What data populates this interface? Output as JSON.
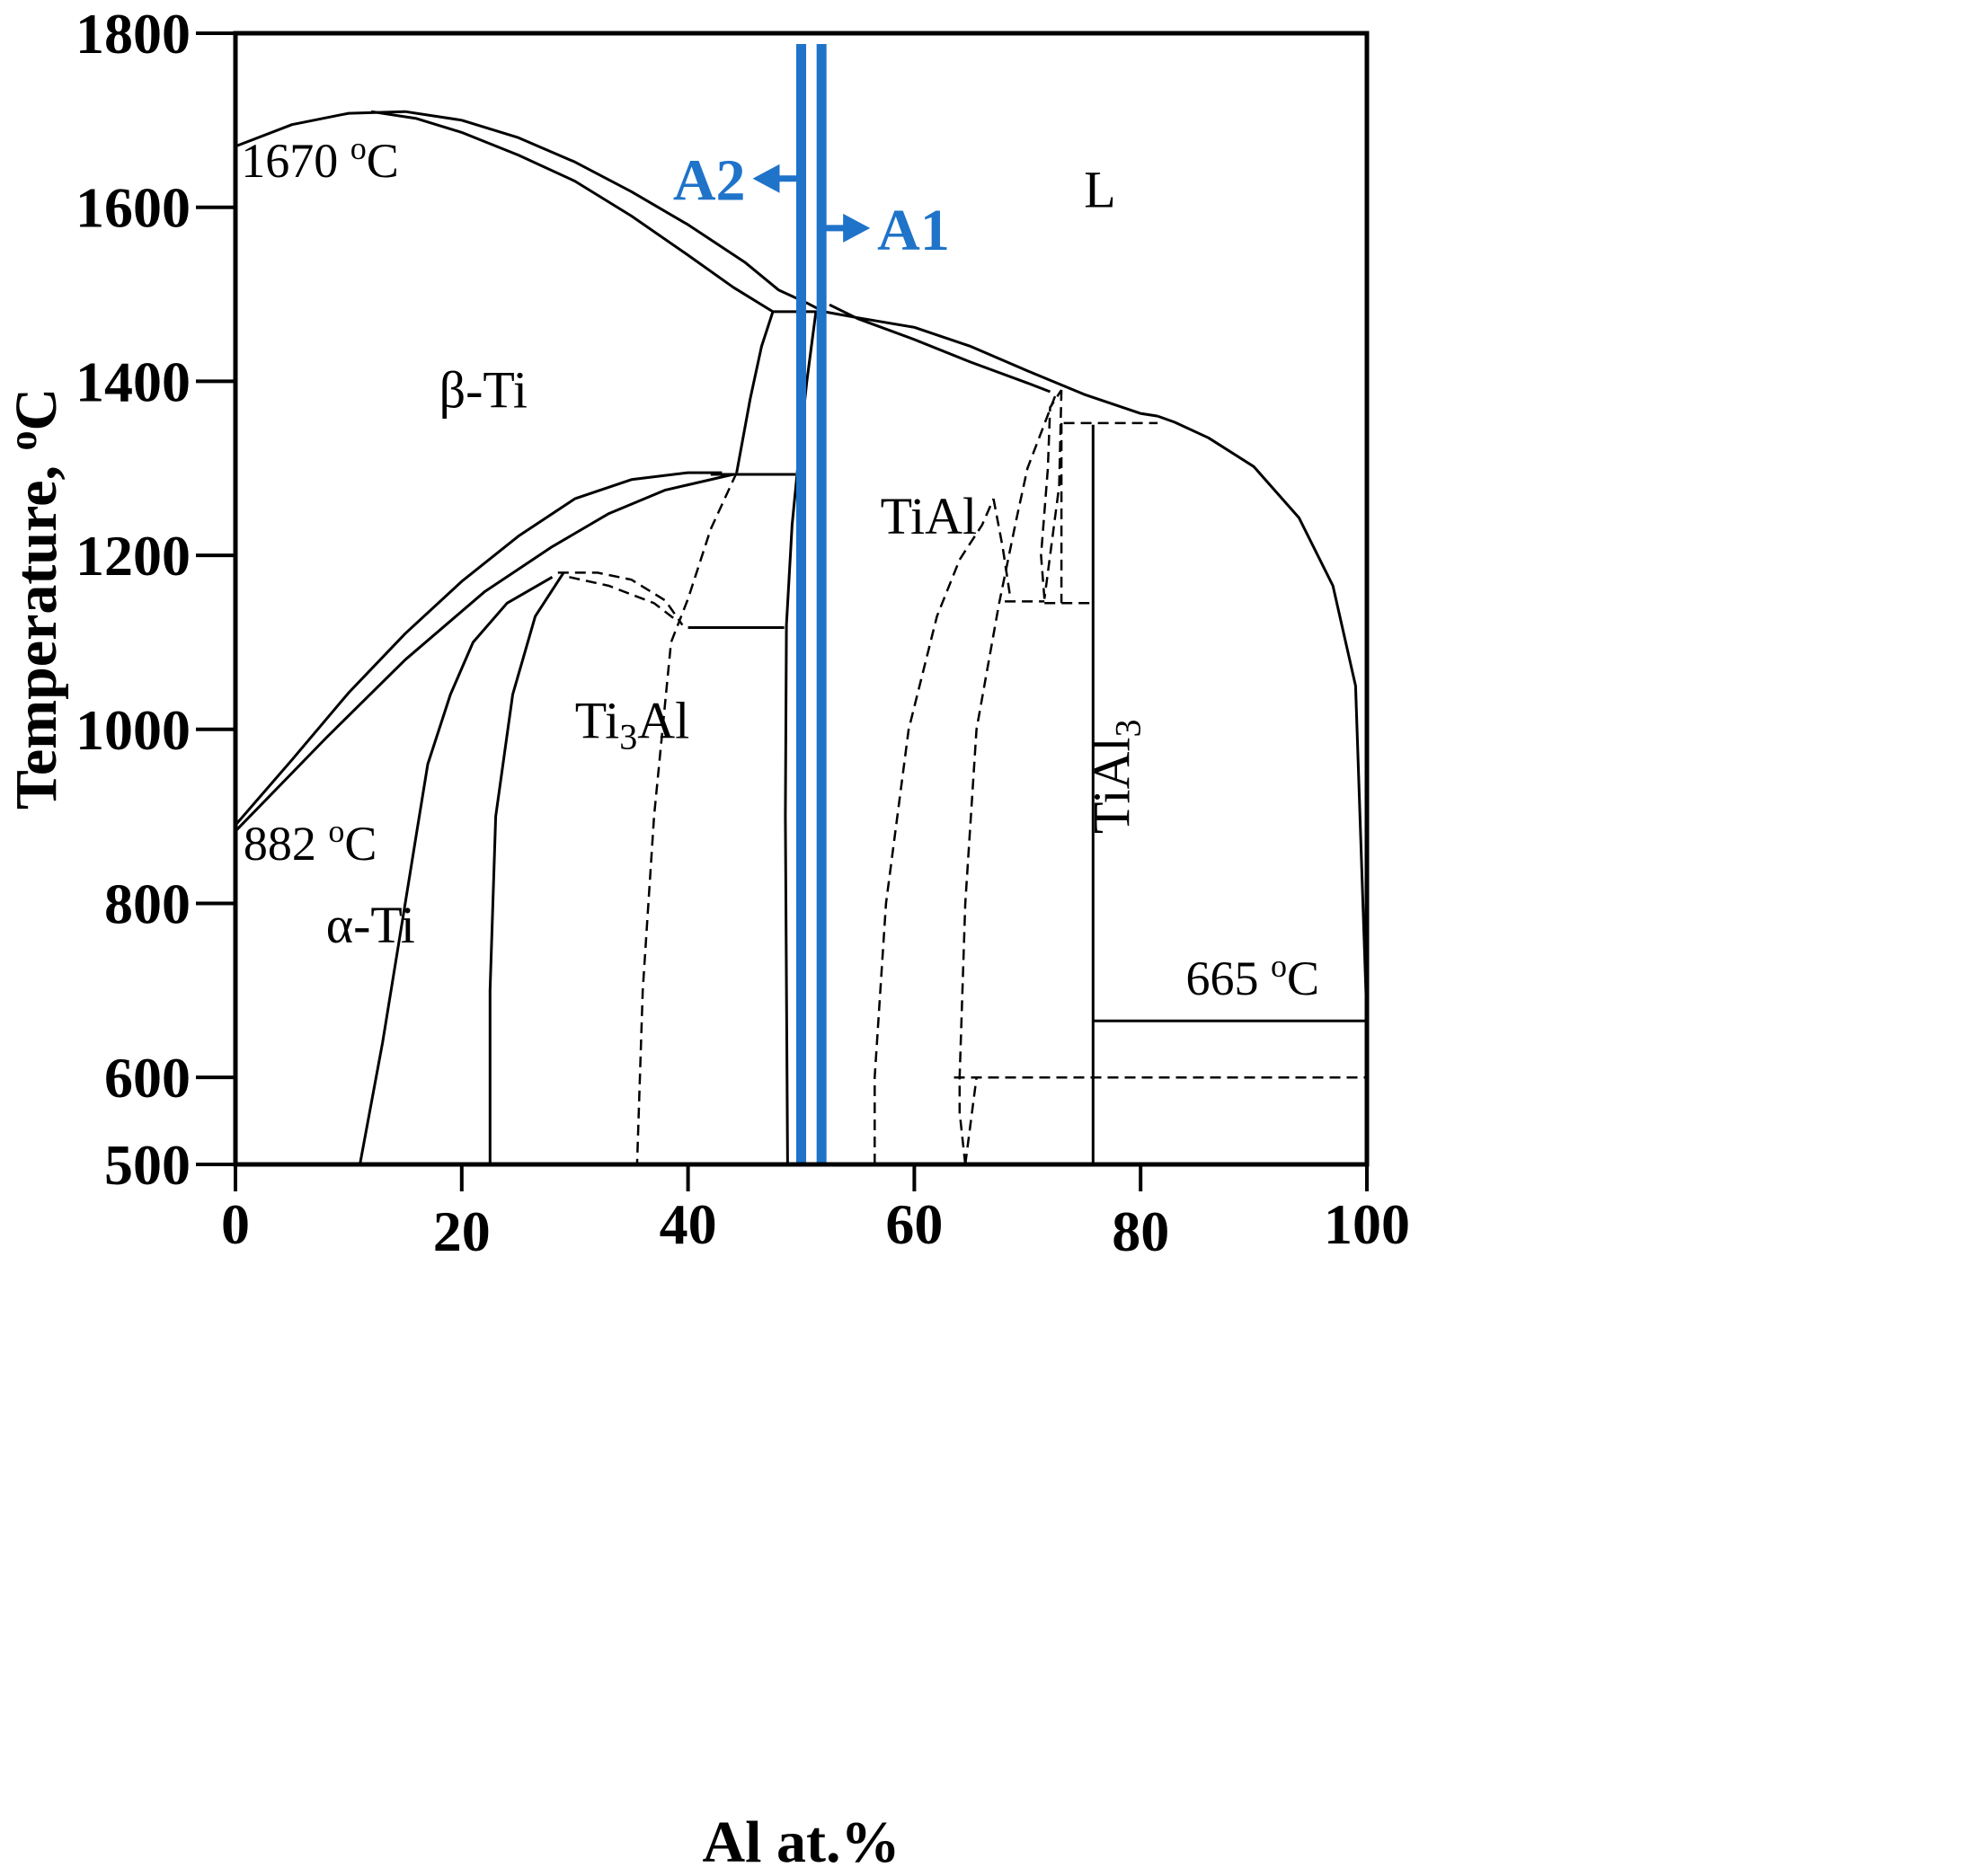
{
  "chart_data": {
    "type": "line",
    "subtype": "phase-diagram",
    "system": "Ti-Al",
    "xlabel": "Al at.%",
    "ylabel": "Temperature, ",
    "ylabel_unit": "C",
    "xlim": [
      0,
      100
    ],
    "ylim": [
      500,
      1800
    ],
    "xticks": [
      "0",
      "20",
      "40",
      "60",
      "80",
      "100"
    ],
    "yticks": [
      "500",
      "600",
      "800",
      "1000",
      "1200",
      "1400",
      "1600",
      "1800"
    ],
    "grid": false,
    "regions": [
      {
        "label": "L",
        "x": 75,
        "y": 1600
      },
      {
        "label": "β-Ti",
        "x": 18,
        "y": 1370
      },
      {
        "label": "TiAl",
        "x": 57,
        "y": 1225
      },
      {
        "label": "α-Ti",
        "x": 8,
        "y": 755
      },
      {
        "base": "Ti",
        "sub": "3",
        "rest": "Al",
        "x": 30,
        "y": 990
      },
      {
        "base": "TiAl",
        "sub": "3",
        "x": 79,
        "y": 880,
        "rotated": true
      }
    ],
    "temperature_labels": [
      {
        "text": "1670 ",
        "sup": "o",
        "unit": "C",
        "x": 0.5,
        "y": 1635
      },
      {
        "text": "882 ",
        "sup": "o",
        "unit": "C",
        "x": 0.7,
        "y": 850
      },
      {
        "text": "665 ",
        "sup": "o",
        "unit": "C",
        "x": 84,
        "y": 695
      }
    ],
    "compositions": [
      {
        "name": "A1",
        "x": 51.8,
        "arrow": "right",
        "arrow_y": 1576,
        "color": "#1f73c9"
      },
      {
        "name": "A2",
        "x": 50.0,
        "arrow": "left",
        "arrow_y": 1633,
        "color": "#1f73c9"
      }
    ],
    "solid_lines": [
      [
        [
          0,
          1670
        ],
        [
          5,
          1695
        ],
        [
          10,
          1708
        ],
        [
          15,
          1710
        ],
        [
          20,
          1700
        ],
        [
          25,
          1680
        ],
        [
          30,
          1652
        ],
        [
          35,
          1618
        ],
        [
          40,
          1580
        ],
        [
          45,
          1537
        ],
        [
          48,
          1505
        ],
        [
          50.5,
          1490
        ],
        [
          52,
          1480
        ]
      ],
      [
        [
          12,
          1710
        ],
        [
          16,
          1702
        ],
        [
          20,
          1686
        ],
        [
          25,
          1660
        ],
        [
          30,
          1630
        ],
        [
          35,
          1590
        ],
        [
          40,
          1545
        ],
        [
          44,
          1508
        ],
        [
          47.5,
          1480
        ]
      ],
      [
        [
          47.5,
          1480
        ],
        [
          52,
          1480
        ]
      ],
      [
        [
          52,
          1480
        ],
        [
          55,
          1473
        ],
        [
          60,
          1462
        ],
        [
          65,
          1440
        ],
        [
          70,
          1412
        ],
        [
          75,
          1385
        ],
        [
          80,
          1363
        ],
        [
          81.5,
          1360
        ]
      ],
      [
        [
          52.5,
          1488
        ],
        [
          55,
          1472
        ],
        [
          60,
          1448
        ],
        [
          65,
          1422
        ],
        [
          70,
          1398
        ],
        [
          72,
          1388
        ]
      ],
      [
        [
          81.5,
          1360
        ],
        [
          83,
          1353
        ],
        [
          86,
          1335
        ],
        [
          90,
          1302
        ],
        [
          94,
          1243
        ],
        [
          97,
          1165
        ],
        [
          99,
          1050
        ],
        [
          100,
          665
        ]
      ],
      [
        [
          47.5,
          1480
        ],
        [
          46.5,
          1440
        ],
        [
          45.5,
          1380
        ],
        [
          44.3,
          1295
        ]
      ],
      [
        [
          51.3,
          1480
        ],
        [
          50.5,
          1400
        ],
        [
          49.8,
          1315
        ],
        [
          49.2,
          1235
        ],
        [
          48.7,
          1120
        ],
        [
          48.6,
          900
        ],
        [
          48.8,
          500
        ]
      ],
      [
        [
          42,
          1293
        ],
        [
          49.5,
          1293
        ]
      ],
      [
        [
          0,
          890
        ],
        [
          5,
          965
        ],
        [
          10,
          1042
        ],
        [
          15,
          1110
        ],
        [
          20,
          1170
        ],
        [
          25,
          1222
        ],
        [
          30,
          1265
        ],
        [
          35,
          1287
        ],
        [
          40,
          1295
        ],
        [
          43,
          1295
        ]
      ],
      [
        [
          0,
          883
        ],
        [
          8,
          990
        ],
        [
          15,
          1080
        ],
        [
          22,
          1158
        ],
        [
          28,
          1210
        ],
        [
          33,
          1248
        ],
        [
          38,
          1275
        ],
        [
          44,
          1293
        ]
      ],
      [
        [
          11,
          500
        ],
        [
          13,
          640
        ],
        [
          15,
          800
        ],
        [
          16,
          880
        ],
        [
          17,
          960
        ],
        [
          19,
          1040
        ],
        [
          21,
          1100
        ],
        [
          24,
          1145
        ],
        [
          28,
          1175
        ]
      ],
      [
        [
          22.5,
          500
        ],
        [
          22.5,
          700
        ],
        [
          23,
          900
        ],
        [
          24.5,
          1040
        ],
        [
          26.5,
          1130
        ],
        [
          29,
          1180
        ]
      ],
      [
        [
          40,
          1117
        ],
        [
          48.5,
          1117
        ]
      ],
      [
        [
          75.8,
          1350
        ],
        [
          75.8,
          500
        ]
      ],
      [
        [
          75.8,
          665
        ],
        [
          100,
          665
        ]
      ]
    ],
    "dashed_lines": [
      [
        [
          28.5,
          1180
        ],
        [
          32,
          1180
        ],
        [
          35,
          1172
        ],
        [
          38,
          1148
        ],
        [
          39.5,
          1120
        ]
      ],
      [
        [
          29.5,
          1175
        ],
        [
          33,
          1165
        ],
        [
          37,
          1145
        ],
        [
          39,
          1125
        ]
      ],
      [
        [
          44.3,
          1295
        ],
        [
          42,
          1230
        ],
        [
          40,
          1150
        ],
        [
          38.5,
          1100
        ],
        [
          37,
          900
        ],
        [
          36,
          700
        ],
        [
          35.5,
          500
        ]
      ],
      [
        [
          56.5,
          500
        ],
        [
          56.5,
          600
        ],
        [
          57.5,
          800
        ],
        [
          59.5,
          1000
        ],
        [
          62,
          1130
        ],
        [
          64,
          1195
        ],
        [
          66,
          1235
        ],
        [
          67,
          1265
        ]
      ],
      [
        [
          64.5,
          500
        ],
        [
          64,
          560
        ],
        [
          64,
          600
        ],
        [
          64.5,
          800
        ],
        [
          65.5,
          1000
        ],
        [
          67.5,
          1145
        ],
        [
          69,
          1240
        ],
        [
          70,
          1300
        ],
        [
          72.5,
          1385
        ]
      ],
      [
        [
          67,
          1265
        ],
        [
          67.8,
          1210
        ],
        [
          68.5,
          1150
        ]
      ],
      [
        [
          71.5,
          1150
        ],
        [
          71.2,
          1200
        ],
        [
          71.8,
          1300
        ],
        [
          72,
          1370
        ],
        [
          73,
          1390
        ]
      ],
      [
        [
          73,
          1390
        ],
        [
          72.8,
          1280
        ],
        [
          71.5,
          1150
        ]
      ],
      [
        [
          68,
          1147
        ],
        [
          71.5,
          1147
        ]
      ],
      [
        [
          71.5,
          1145
        ],
        [
          75.8,
          1145
        ]
      ],
      [
        [
          73,
          1352
        ],
        [
          73,
          1145
        ]
      ],
      [
        [
          73.2,
          1352
        ],
        [
          81.5,
          1352
        ]
      ],
      [
        [
          64.5,
          500
        ],
        [
          65.5,
          600
        ]
      ],
      [
        [
          63.5,
          600
        ],
        [
          100,
          600
        ]
      ]
    ]
  }
}
